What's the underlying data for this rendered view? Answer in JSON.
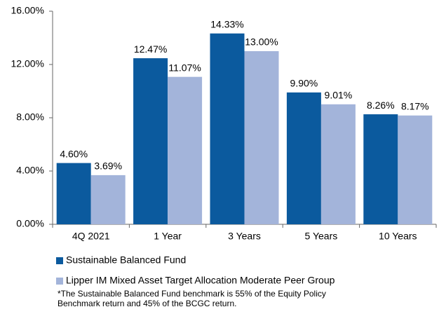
{
  "chart_data": {
    "type": "bar",
    "categories": [
      "4Q 2021",
      "1 Year",
      "3 Years",
      "5 Years",
      "10 Years"
    ],
    "series": [
      {
        "name": "Sustainable Balanced Fund",
        "color": "#0b5a9e",
        "values": [
          4.6,
          12.47,
          14.33,
          9.9,
          8.26
        ],
        "value_labels": [
          "4.60%",
          "12.47%",
          "14.33%",
          "9.90%",
          "8.26%"
        ]
      },
      {
        "name": "Lipper IM Mixed Asset Target Allocation Moderate Peer Group",
        "color": "#a3b4da",
        "values": [
          3.69,
          11.07,
          13.0,
          9.01,
          8.17
        ],
        "value_labels": [
          "3.69%",
          "11.07%",
          "13.00%",
          "9.01%",
          "8.17%"
        ]
      }
    ],
    "ylim": [
      0,
      16
    ],
    "yticks": [
      {
        "value": 0,
        "label": "0.00%"
      },
      {
        "value": 4,
        "label": "4.00%"
      },
      {
        "value": 8,
        "label": "8.00%"
      },
      {
        "value": 12,
        "label": "12.00%"
      },
      {
        "value": 16,
        "label": "16.00%"
      }
    ],
    "grid": false,
    "footnote": [
      "*The Sustainable Balanced Fund benchmark is 55% of the Equity Policy",
      "Benchmark return and 45% of the BCGC return."
    ]
  }
}
